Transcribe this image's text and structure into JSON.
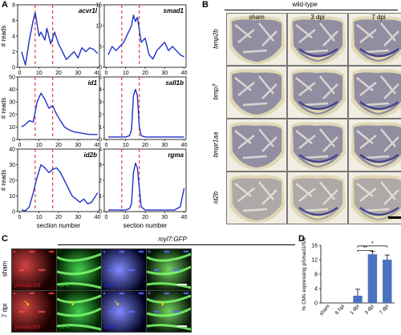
{
  "panels": {
    "A": "A",
    "B": "B",
    "C": "C",
    "D": "D"
  },
  "panelA": {
    "ylabel": "# reads",
    "xlabel": "section number",
    "xticks": [
      "0",
      "10",
      "20",
      "30",
      "40"
    ],
    "dashed_lines_x": [
      8,
      17
    ],
    "plots": [
      {
        "gene": "acvr1l",
        "yticks": [
          "0",
          "2",
          "4",
          "6",
          "8"
        ],
        "ymax": 8
      },
      {
        "gene": "smad1",
        "yticks": [
          "0",
          "5",
          "10",
          "15"
        ],
        "ymax": 15
      },
      {
        "gene": "id1",
        "yticks": [
          "0",
          "10",
          "20",
          "30",
          "40",
          "50"
        ],
        "ymax": 50
      },
      {
        "gene": "sall1b",
        "yticks": [
          "0",
          "1",
          "2",
          "3",
          "4",
          "5"
        ],
        "ymax": 5
      },
      {
        "gene": "id2b",
        "yticks": [
          "0",
          "10",
          "20",
          "30",
          "40"
        ],
        "ymax": 40
      },
      {
        "gene": "rgma",
        "yticks": [
          "0",
          "1",
          "2",
          "3",
          "4"
        ],
        "ymax": 4
      }
    ]
  },
  "chart_data": [
    {
      "type": "line",
      "title": "",
      "ylabel": "# reads",
      "xlabel": "section number",
      "series": [
        {
          "name": "acvr1l",
          "x": [
            1,
            3,
            5,
            7,
            8,
            10,
            11,
            13,
            14,
            16,
            18,
            20,
            22,
            24,
            26,
            28,
            30,
            32,
            34,
            36,
            38,
            40
          ],
          "y": [
            2,
            0.3,
            3.5,
            6,
            7,
            4,
            4.5,
            3.5,
            5,
            3,
            4.5,
            3,
            2,
            1,
            1.5,
            2,
            1.2,
            2.5,
            2,
            2.5,
            2.3,
            1.8
          ]
        }
      ],
      "ylim": [
        0,
        8
      ]
    },
    {
      "type": "line",
      "title": "",
      "ylabel": "",
      "xlabel": "section number",
      "series": [
        {
          "name": "smad1",
          "x": [
            1,
            3,
            5,
            7,
            9,
            11,
            13,
            14,
            15,
            16,
            17,
            18,
            20,
            22,
            24,
            26,
            28,
            30,
            32,
            34,
            36,
            38,
            40
          ],
          "y": [
            3,
            5,
            4,
            5,
            6,
            8,
            10,
            12.5,
            11,
            12,
            9,
            6,
            7,
            3,
            2,
            4,
            5,
            6,
            4,
            5,
            4,
            3,
            2.5
          ]
        }
      ],
      "ylim": [
        0,
        15
      ]
    },
    {
      "type": "line",
      "title": "",
      "ylabel": "# reads",
      "xlabel": "section number",
      "series": [
        {
          "name": "id1",
          "x": [
            1,
            3,
            5,
            7,
            9,
            11,
            13,
            15,
            17,
            19,
            21,
            23,
            25,
            28,
            32,
            36,
            40
          ],
          "y": [
            10,
            12,
            15,
            14,
            30,
            37,
            32,
            25,
            27,
            20,
            15,
            10,
            8,
            6,
            5,
            4,
            4
          ]
        }
      ],
      "ylim": [
        0,
        50
      ]
    },
    {
      "type": "line",
      "title": "",
      "ylabel": "",
      "xlabel": "section number",
      "series": [
        {
          "name": "sall1b",
          "x": [
            1,
            5,
            10,
            12,
            13,
            14,
            15,
            16,
            17,
            18,
            20,
            25,
            30,
            35,
            40
          ],
          "y": [
            0.2,
            0.2,
            0.2,
            0.3,
            0.8,
            3.5,
            4,
            3.5,
            1,
            0.3,
            0.2,
            0.2,
            0.2,
            0.2,
            0.2
          ]
        }
      ],
      "ylim": [
        0,
        5
      ]
    },
    {
      "type": "line",
      "title": "",
      "ylabel": "# reads",
      "xlabel": "section number",
      "series": [
        {
          "name": "id2b",
          "x": [
            1,
            3,
            5,
            7,
            9,
            11,
            13,
            15,
            17,
            19,
            21,
            23,
            25,
            27,
            29,
            31,
            33,
            35,
            37,
            40
          ],
          "y": [
            1,
            0.5,
            3,
            12,
            22,
            30,
            28,
            25,
            27,
            28,
            25,
            20,
            15,
            10,
            8,
            6,
            8,
            5,
            6,
            12
          ]
        }
      ],
      "ylim": [
        0,
        40
      ]
    },
    {
      "type": "line",
      "title": "",
      "ylabel": "",
      "xlabel": "section number",
      "series": [
        {
          "name": "rgma",
          "x": [
            1,
            5,
            10,
            12,
            13,
            14,
            15,
            16,
            17,
            18,
            20,
            25,
            30,
            35,
            38,
            40
          ],
          "y": [
            0.1,
            0.1,
            0.1,
            0.2,
            0.5,
            2.5,
            3.1,
            2.8,
            1.5,
            0.3,
            0.1,
            0.1,
            0.1,
            0.1,
            0.3,
            1.5
          ]
        }
      ],
      "ylim": [
        0,
        4
      ]
    },
    {
      "type": "bar",
      "title": "",
      "ylabel": "% CMs expressing pSmad1/5/8",
      "categories": [
        "sham",
        "6 hpi",
        "1 dpi",
        "3 dpi",
        "7 dpi"
      ],
      "values": [
        0,
        0,
        2,
        13.5,
        12
      ],
      "errors": [
        0,
        0,
        1.8,
        0.8,
        1.3
      ],
      "ylim": [
        0,
        16
      ],
      "yticks": [
        0,
        4,
        8,
        12,
        16
      ]
    }
  ],
  "panelB": {
    "header": "wild-type",
    "columns": [
      "sham",
      "3 dpi",
      "7 dpi"
    ],
    "rows": [
      "bmp2b",
      "bmp7",
      "bmpr1aa",
      "id2b"
    ]
  },
  "panelC": {
    "header": "myl7:GFP",
    "rows": [
      "sham",
      "7 dpi"
    ],
    "channels": [
      "pSmad1/5/8",
      "GFP",
      "DAPI"
    ]
  },
  "panelD": {
    "ylabel": "% CMs expressing pSmad1/5/8",
    "yticks": [
      "0",
      "4",
      "8",
      "12",
      "16"
    ],
    "significance": [
      "**",
      "*"
    ]
  },
  "colors": {
    "line": "#1f33c8",
    "dashed": "#e01f1f",
    "bar": "#4a72c0",
    "stain": "#3a3a8c",
    "tissue": "#d9cfa6",
    "gfp": "#2ecc3a",
    "dapi": "#1a2cff",
    "red": "#e02020"
  }
}
